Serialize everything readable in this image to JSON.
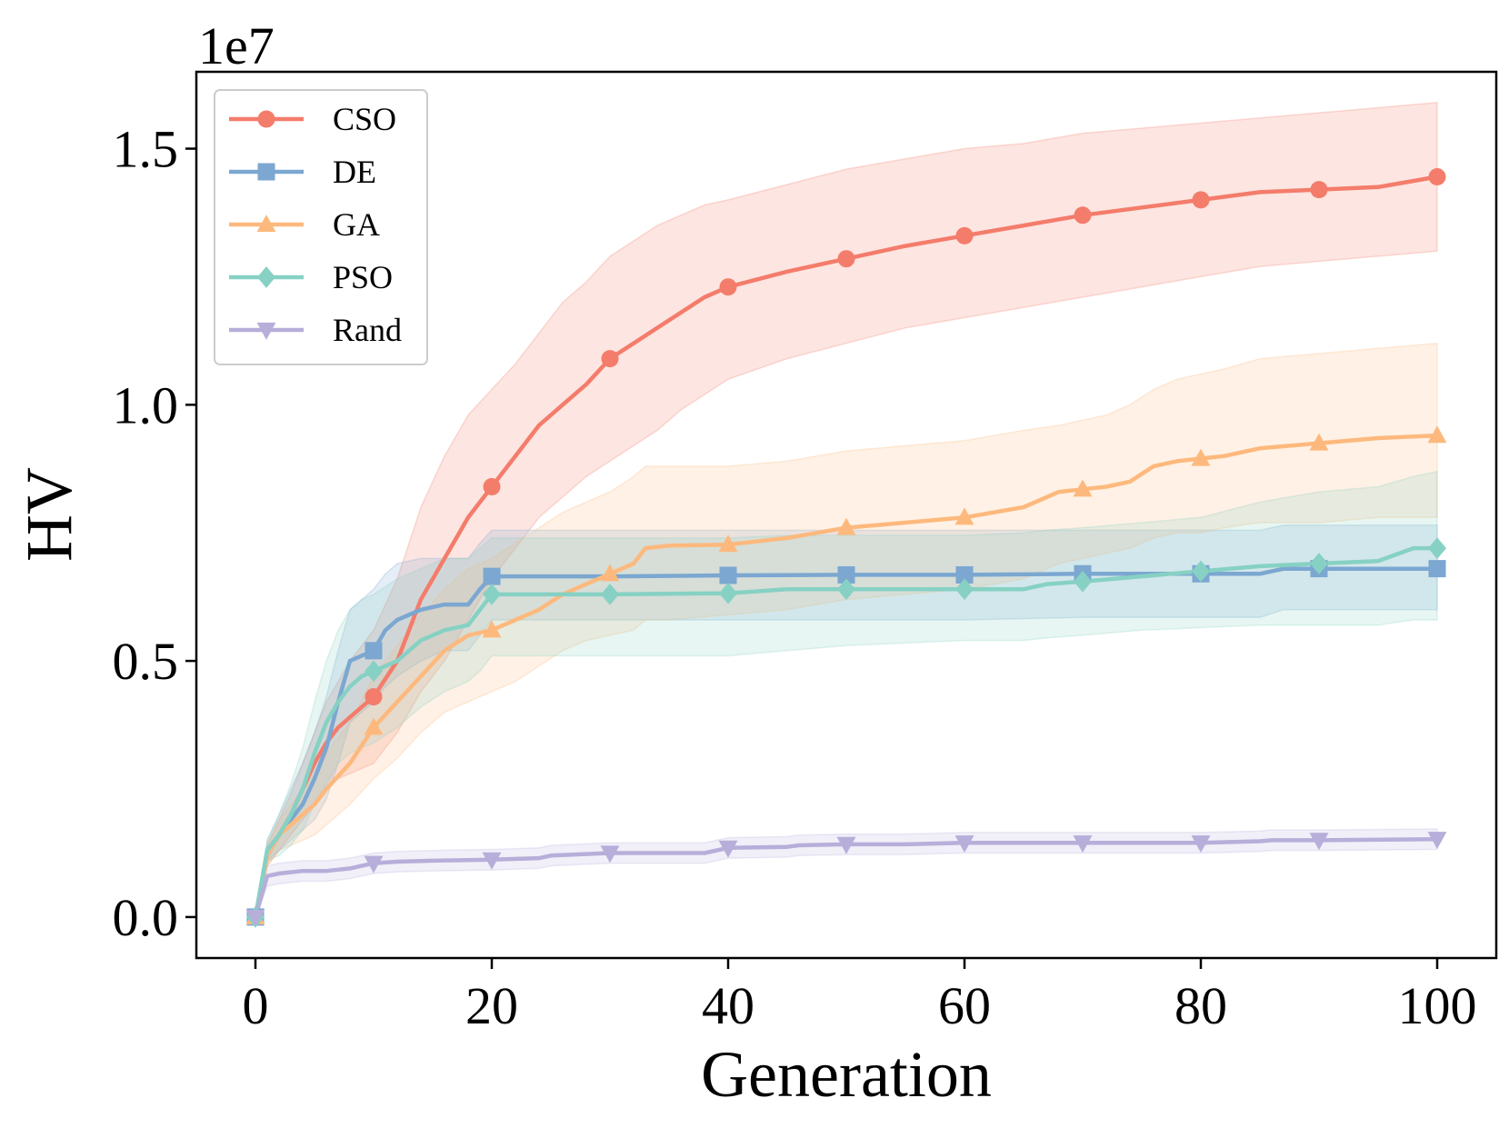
{
  "chart_data": {
    "type": "line",
    "title": "",
    "xlabel": "Generation",
    "ylabel": "HV",
    "y_offset_label": "1e7",
    "xlim": [
      -5,
      105
    ],
    "ylim": [
      -0.08,
      1.65
    ],
    "xticks": [
      0,
      20,
      40,
      60,
      80,
      100
    ],
    "xtick_labels": [
      "0",
      "20",
      "40",
      "60",
      "80",
      "100"
    ],
    "yticks": [
      0.0,
      0.5,
      1.0,
      1.5
    ],
    "ytick_labels": [
      "0.0",
      "0.5",
      "1.0",
      "1.5"
    ],
    "legend_position": "top-left",
    "series": [
      {
        "name": "CSO",
        "color": "#F47C6B",
        "marker": "circle",
        "x": [
          0,
          1,
          2,
          3,
          4,
          5,
          6,
          7,
          8,
          10,
          12,
          14,
          16,
          18,
          20,
          22,
          24,
          26,
          28,
          30,
          32,
          34,
          36,
          38,
          40,
          45,
          50,
          55,
          60,
          65,
          70,
          75,
          80,
          85,
          90,
          95,
          100
        ],
        "y": [
          0,
          0.12,
          0.16,
          0.2,
          0.25,
          0.3,
          0.34,
          0.37,
          0.39,
          0.43,
          0.5,
          0.62,
          0.7,
          0.78,
          0.84,
          0.9,
          0.96,
          1.0,
          1.04,
          1.09,
          1.12,
          1.15,
          1.18,
          1.21,
          1.23,
          1.26,
          1.285,
          1.31,
          1.33,
          1.35,
          1.37,
          1.385,
          1.4,
          1.415,
          1.42,
          1.425,
          1.445
        ],
        "upper": [
          0,
          0.14,
          0.19,
          0.24,
          0.3,
          0.36,
          0.42,
          0.46,
          0.5,
          0.56,
          0.66,
          0.8,
          0.9,
          0.98,
          1.03,
          1.08,
          1.14,
          1.2,
          1.24,
          1.29,
          1.32,
          1.35,
          1.37,
          1.39,
          1.4,
          1.43,
          1.46,
          1.48,
          1.5,
          1.51,
          1.53,
          1.54,
          1.55,
          1.56,
          1.57,
          1.58,
          1.59
        ],
        "lower": [
          0,
          0.1,
          0.13,
          0.16,
          0.19,
          0.22,
          0.25,
          0.27,
          0.28,
          0.3,
          0.36,
          0.44,
          0.5,
          0.58,
          0.66,
          0.72,
          0.78,
          0.82,
          0.86,
          0.89,
          0.92,
          0.95,
          0.99,
          1.02,
          1.05,
          1.09,
          1.12,
          1.15,
          1.17,
          1.19,
          1.21,
          1.23,
          1.25,
          1.27,
          1.28,
          1.29,
          1.3
        ],
        "marker_x": [
          0,
          10,
          20,
          30,
          40,
          50,
          60,
          70,
          80,
          90,
          100
        ]
      },
      {
        "name": "DE",
        "color": "#7BA7D1",
        "marker": "square",
        "x": [
          0,
          1,
          2,
          3,
          4,
          5,
          6,
          7,
          8,
          10,
          11,
          12,
          14,
          16,
          18,
          19,
          20,
          25,
          30,
          40,
          50,
          60,
          70,
          80,
          85,
          87,
          90,
          95,
          100
        ],
        "y": [
          0,
          0.13,
          0.16,
          0.19,
          0.22,
          0.27,
          0.33,
          0.42,
          0.5,
          0.52,
          0.56,
          0.58,
          0.6,
          0.61,
          0.61,
          0.64,
          0.665,
          0.665,
          0.665,
          0.667,
          0.668,
          0.668,
          0.67,
          0.67,
          0.67,
          0.68,
          0.68,
          0.68,
          0.68
        ],
        "upper": [
          0,
          0.15,
          0.2,
          0.25,
          0.3,
          0.36,
          0.43,
          0.52,
          0.6,
          0.64,
          0.67,
          0.69,
          0.7,
          0.7,
          0.7,
          0.73,
          0.755,
          0.755,
          0.755,
          0.755,
          0.755,
          0.755,
          0.755,
          0.755,
          0.755,
          0.765,
          0.765,
          0.765,
          0.765
        ],
        "lower": [
          0,
          0.11,
          0.13,
          0.15,
          0.17,
          0.19,
          0.23,
          0.3,
          0.38,
          0.42,
          0.45,
          0.47,
          0.5,
          0.52,
          0.52,
          0.55,
          0.58,
          0.58,
          0.58,
          0.58,
          0.58,
          0.58,
          0.585,
          0.585,
          0.585,
          0.6,
          0.6,
          0.6,
          0.6
        ],
        "marker_x": [
          0,
          10,
          20,
          40,
          50,
          60,
          70,
          80,
          90,
          100
        ]
      },
      {
        "name": "GA",
        "color": "#FDB97D",
        "marker": "triangle-up",
        "x": [
          0,
          1,
          2,
          3,
          4,
          5,
          6,
          8,
          10,
          12,
          14,
          16,
          18,
          20,
          22,
          24,
          26,
          28,
          30,
          32,
          33,
          35,
          40,
          45,
          50,
          55,
          60,
          65,
          68,
          70,
          72,
          74,
          76,
          78,
          80,
          82,
          85,
          90,
          95,
          100
        ],
        "y": [
          0,
          0.12,
          0.16,
          0.18,
          0.2,
          0.22,
          0.25,
          0.3,
          0.37,
          0.42,
          0.47,
          0.52,
          0.55,
          0.56,
          0.58,
          0.6,
          0.63,
          0.65,
          0.67,
          0.69,
          0.72,
          0.725,
          0.727,
          0.74,
          0.76,
          0.77,
          0.78,
          0.8,
          0.83,
          0.835,
          0.84,
          0.85,
          0.88,
          0.89,
          0.895,
          0.9,
          0.915,
          0.925,
          0.935,
          0.94
        ],
        "upper": [
          0,
          0.14,
          0.19,
          0.22,
          0.25,
          0.28,
          0.32,
          0.38,
          0.47,
          0.53,
          0.59,
          0.64,
          0.68,
          0.7,
          0.73,
          0.76,
          0.79,
          0.81,
          0.83,
          0.86,
          0.88,
          0.88,
          0.88,
          0.89,
          0.91,
          0.92,
          0.93,
          0.95,
          0.96,
          0.97,
          0.98,
          1.0,
          1.03,
          1.05,
          1.06,
          1.07,
          1.09,
          1.1,
          1.11,
          1.12
        ],
        "lower": [
          0,
          0.1,
          0.13,
          0.14,
          0.15,
          0.16,
          0.18,
          0.22,
          0.27,
          0.31,
          0.36,
          0.4,
          0.42,
          0.44,
          0.46,
          0.49,
          0.52,
          0.54,
          0.55,
          0.56,
          0.58,
          0.58,
          0.59,
          0.6,
          0.62,
          0.63,
          0.64,
          0.66,
          0.69,
          0.7,
          0.71,
          0.72,
          0.74,
          0.75,
          0.75,
          0.76,
          0.77,
          0.77,
          0.78,
          0.78
        ],
        "marker_x": [
          0,
          10,
          20,
          30,
          40,
          50,
          60,
          70,
          80,
          90,
          100
        ]
      },
      {
        "name": "PSO",
        "color": "#86D1C3",
        "marker": "diamond",
        "x": [
          0,
          1,
          2,
          3,
          4,
          5,
          6,
          7,
          8,
          9,
          10,
          12,
          14,
          16,
          18,
          19,
          20,
          25,
          30,
          40,
          45,
          50,
          60,
          65,
          67,
          70,
          75,
          80,
          85,
          90,
          95,
          98,
          100
        ],
        "y": [
          0,
          0.13,
          0.16,
          0.2,
          0.25,
          0.32,
          0.38,
          0.42,
          0.45,
          0.47,
          0.48,
          0.5,
          0.54,
          0.56,
          0.57,
          0.6,
          0.63,
          0.63,
          0.63,
          0.632,
          0.64,
          0.64,
          0.64,
          0.64,
          0.65,
          0.655,
          0.665,
          0.675,
          0.685,
          0.69,
          0.695,
          0.72,
          0.72
        ],
        "upper": [
          0,
          0.15,
          0.2,
          0.26,
          0.33,
          0.42,
          0.5,
          0.56,
          0.6,
          0.62,
          0.63,
          0.66,
          0.68,
          0.7,
          0.7,
          0.72,
          0.74,
          0.74,
          0.74,
          0.74,
          0.745,
          0.745,
          0.745,
          0.75,
          0.755,
          0.76,
          0.77,
          0.78,
          0.81,
          0.83,
          0.84,
          0.86,
          0.87
        ],
        "lower": [
          0,
          0.11,
          0.12,
          0.14,
          0.17,
          0.22,
          0.26,
          0.3,
          0.32,
          0.33,
          0.34,
          0.37,
          0.41,
          0.44,
          0.46,
          0.48,
          0.51,
          0.51,
          0.51,
          0.51,
          0.52,
          0.53,
          0.54,
          0.54,
          0.545,
          0.55,
          0.56,
          0.565,
          0.57,
          0.57,
          0.57,
          0.58,
          0.58
        ],
        "marker_x": [
          0,
          10,
          20,
          30,
          40,
          50,
          60,
          70,
          80,
          90,
          100
        ]
      },
      {
        "name": "Rand",
        "color": "#B7AEDA",
        "marker": "triangle-down",
        "x": [
          0,
          1,
          2,
          4,
          6,
          8,
          9,
          10,
          12,
          15,
          20,
          24,
          25,
          30,
          38,
          40,
          45,
          46,
          50,
          55,
          60,
          70,
          80,
          85,
          86,
          90,
          100
        ],
        "y": [
          0,
          0.08,
          0.085,
          0.09,
          0.09,
          0.095,
          0.1,
          0.105,
          0.108,
          0.11,
          0.112,
          0.115,
          0.12,
          0.125,
          0.125,
          0.135,
          0.137,
          0.14,
          0.142,
          0.142,
          0.145,
          0.145,
          0.145,
          0.148,
          0.15,
          0.15,
          0.152
        ],
        "upper": [
          0,
          0.1,
          0.105,
          0.11,
          0.11,
          0.115,
          0.12,
          0.125,
          0.128,
          0.13,
          0.132,
          0.135,
          0.14,
          0.145,
          0.145,
          0.155,
          0.157,
          0.16,
          0.162,
          0.162,
          0.165,
          0.165,
          0.165,
          0.168,
          0.17,
          0.17,
          0.172
        ],
        "lower": [
          0,
          0.06,
          0.065,
          0.07,
          0.07,
          0.075,
          0.08,
          0.085,
          0.088,
          0.09,
          0.092,
          0.095,
          0.1,
          0.105,
          0.105,
          0.115,
          0.117,
          0.12,
          0.122,
          0.122,
          0.125,
          0.125,
          0.125,
          0.128,
          0.13,
          0.13,
          0.132
        ],
        "marker_x": [
          0,
          10,
          20,
          30,
          40,
          50,
          60,
          70,
          80,
          90,
          100
        ]
      }
    ]
  }
}
